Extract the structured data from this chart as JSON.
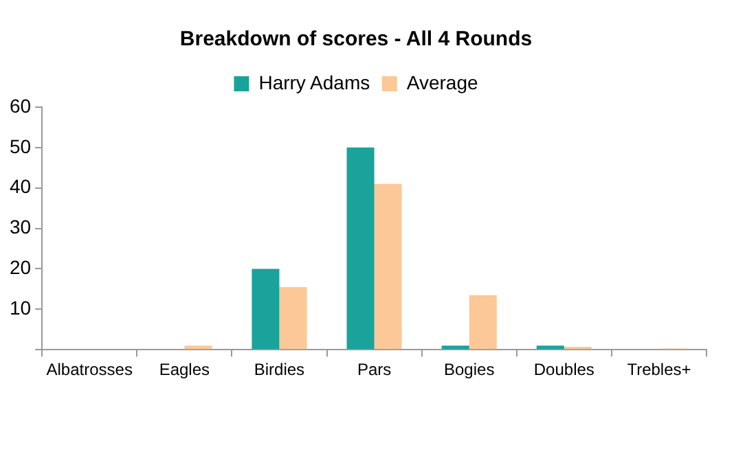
{
  "chart_data": {
    "type": "bar",
    "title": "Breakdown of scores - All 4 Rounds",
    "categories": [
      "Albatrosses",
      "Eagles",
      "Birdies",
      "Pars",
      "Bogies",
      "Doubles",
      "Trebles+"
    ],
    "series": [
      {
        "name": "Harry Adams",
        "color": "#1aa39a",
        "values": [
          0,
          0,
          20,
          50,
          1,
          1,
          0
        ]
      },
      {
        "name": "Average",
        "color": "#fcc897",
        "values": [
          0,
          1,
          15.5,
          41,
          13.5,
          0.7,
          0.3
        ]
      }
    ],
    "ylim": [
      0,
      60
    ],
    "yticks": [
      {
        "value": 0,
        "label": null
      },
      10,
      20,
      30,
      40,
      50,
      60
    ],
    "grid": false,
    "legend": "top"
  }
}
